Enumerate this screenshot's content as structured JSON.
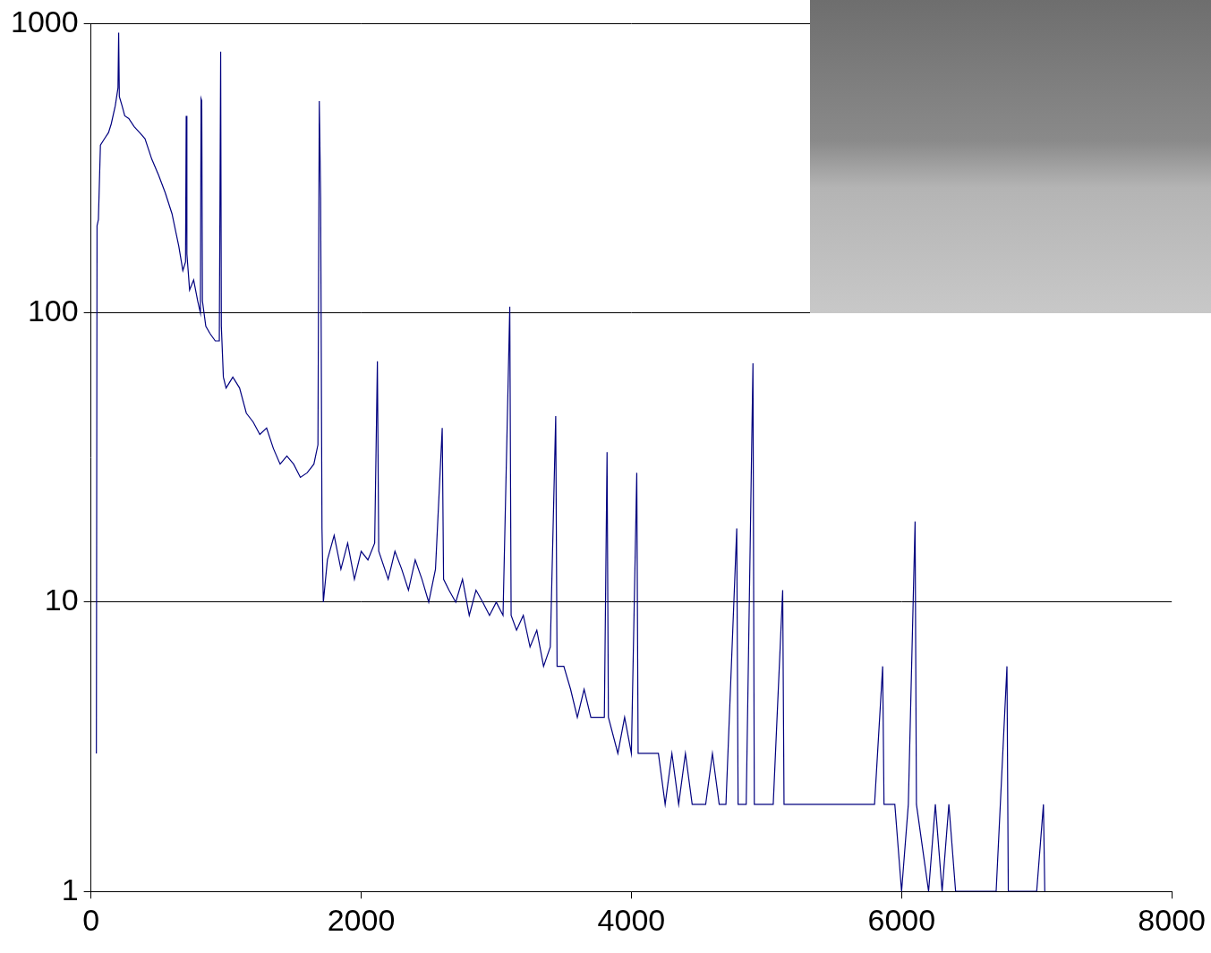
{
  "chart_data": {
    "type": "line",
    "color": "#00007f",
    "log": "y",
    "grid": "y",
    "xlim": [
      0,
      8000
    ],
    "xticks": [
      0,
      2000,
      4000,
      6000,
      8000
    ],
    "ylim": [
      1,
      1000
    ],
    "yticks": [
      1,
      10,
      100,
      1000
    ],
    "x": [
      40,
      45,
      55,
      70,
      100,
      130,
      150,
      180,
      200,
      205,
      210,
      230,
      250,
      280,
      320,
      360,
      400,
      450,
      500,
      550,
      600,
      650,
      680,
      700,
      705,
      710,
      730,
      760,
      790,
      810,
      815,
      820,
      825,
      850,
      880,
      920,
      950,
      960,
      965,
      980,
      1000,
      1050,
      1100,
      1150,
      1200,
      1250,
      1300,
      1350,
      1400,
      1450,
      1500,
      1550,
      1600,
      1650,
      1680,
      1690,
      1700,
      1710,
      1720,
      1750,
      1800,
      1850,
      1900,
      1950,
      2000,
      2050,
      2100,
      2120,
      2130,
      2200,
      2250,
      2300,
      2350,
      2400,
      2450,
      2500,
      2550,
      2600,
      2610,
      2650,
      2700,
      2750,
      2800,
      2850,
      2900,
      2950,
      3000,
      3050,
      3100,
      3110,
      3150,
      3200,
      3250,
      3300,
      3350,
      3400,
      3440,
      3450,
      3500,
      3550,
      3600,
      3650,
      3700,
      3750,
      3800,
      3820,
      3830,
      3900,
      3950,
      4000,
      4040,
      4050,
      4100,
      4150,
      4200,
      4250,
      4300,
      4350,
      4400,
      4450,
      4500,
      4550,
      4600,
      4650,
      4700,
      4780,
      4790,
      4850,
      4900,
      4910,
      4950,
      5000,
      5050,
      5120,
      5130,
      5200,
      5300,
      5400,
      5500,
      5600,
      5700,
      5800,
      5860,
      5870,
      5950,
      6000,
      6050,
      6100,
      6110,
      6200,
      6250,
      6300,
      6350,
      6400,
      6500,
      6600,
      6700,
      6780,
      6790,
      6900,
      7000,
      7050,
      7060
    ],
    "values": [
      3,
      200,
      210,
      380,
      400,
      420,
      450,
      520,
      600,
      930,
      560,
      520,
      480,
      470,
      440,
      420,
      400,
      340,
      300,
      260,
      220,
      170,
      140,
      150,
      480,
      160,
      120,
      130,
      110,
      100,
      550,
      540,
      110,
      90,
      85,
      80,
      80,
      800,
      90,
      60,
      55,
      60,
      55,
      45,
      42,
      38,
      40,
      34,
      30,
      32,
      30,
      27,
      28,
      30,
      35,
      540,
      250,
      18,
      10,
      14,
      17,
      13,
      16,
      12,
      15,
      14,
      16,
      68,
      15,
      12,
      15,
      13,
      11,
      14,
      12,
      10,
      13,
      40,
      12,
      11,
      10,
      12,
      9,
      11,
      10,
      9,
      10,
      9,
      105,
      9,
      8,
      9,
      7,
      8,
      6,
      7,
      44,
      6,
      6,
      5,
      4,
      5,
      4,
      4,
      4,
      33,
      4,
      3,
      4,
      3,
      28,
      3,
      3,
      3,
      3,
      2,
      3,
      2,
      3,
      2,
      2,
      2,
      3,
      2,
      2,
      18,
      2,
      2,
      67,
      2,
      2,
      2,
      2,
      11,
      2,
      2,
      2,
      2,
      2,
      2,
      2,
      2,
      6,
      2,
      2,
      1,
      2,
      19,
      2,
      1,
      2,
      1,
      2,
      1,
      1,
      1,
      1,
      6,
      1,
      1,
      1,
      2,
      1
    ]
  }
}
